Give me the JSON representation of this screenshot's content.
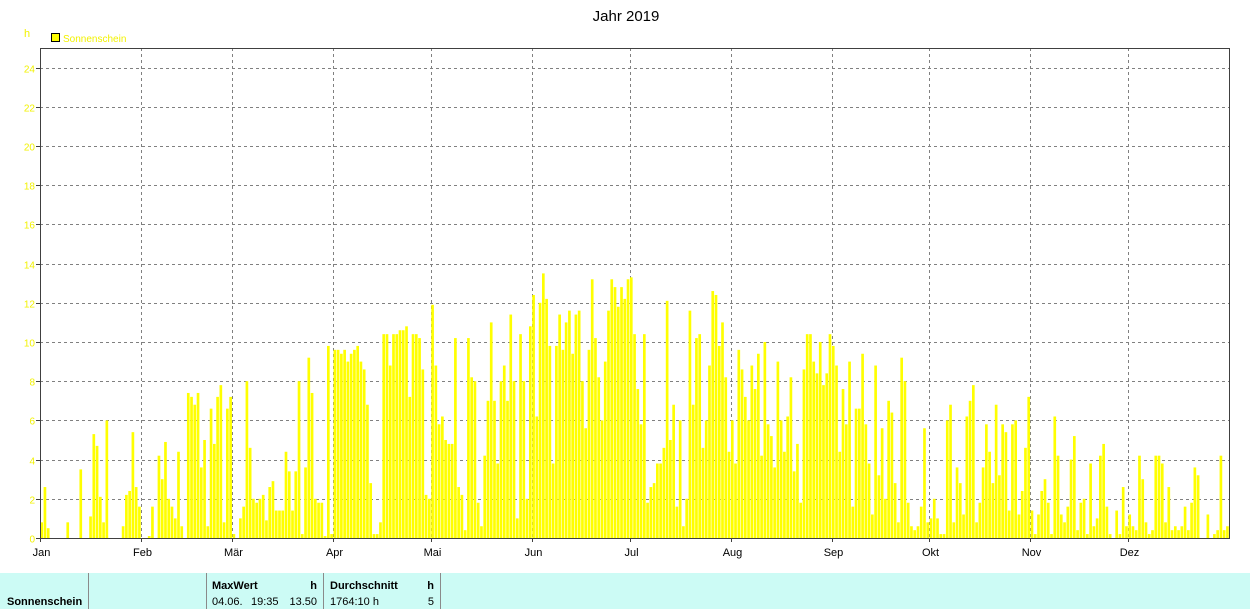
{
  "chart_data": {
    "type": "bar",
    "title": "Jahr 2019",
    "xlabel": "",
    "ylabel": "h",
    "ylim": [
      0,
      25
    ],
    "yticks": [
      0,
      2,
      4,
      6,
      8,
      10,
      12,
      14,
      16,
      18,
      20,
      22,
      24
    ],
    "grid": true,
    "legend": "top-left",
    "series": [
      {
        "name": "Sonnenschein",
        "color": "#ffff00"
      }
    ],
    "colors": {
      "bar": "#ffff00",
      "axis_text": "#f2f200",
      "grid": "#808080",
      "frame": "#404040"
    },
    "months": [
      {
        "label": "Jan",
        "daily_values": [
          0.8,
          2.6,
          0.5,
          0,
          0,
          0,
          0,
          0,
          0.8,
          0,
          0,
          0,
          3.5,
          0,
          0,
          1.1,
          5.3,
          4.7,
          2.1,
          0.8,
          6.0,
          0,
          0,
          0,
          0,
          0.6,
          2.2,
          2.4,
          5.4,
          2.6,
          1.6
        ]
      },
      {
        "label": "Feb",
        "daily_values": [
          0,
          0,
          0.1,
          1.6,
          0,
          4.2,
          3.0,
          4.9,
          2.0,
          1.6,
          1.0,
          4.4,
          0.6,
          0,
          7.4,
          7.2,
          6.8,
          7.4,
          3.6,
          5.0,
          0.6,
          6.6,
          4.8,
          7.2,
          7.8,
          0.8,
          6.6,
          7.2
        ]
      },
      {
        "label": "Mär",
        "daily_values": [
          0.2,
          0,
          1.0,
          1.6,
          8.0,
          4.6,
          2.0,
          1.8,
          2.0,
          2.2,
          0.9,
          2.6,
          2.9,
          1.4,
          1.4,
          1.4,
          4.4,
          3.4,
          1.4,
          3.4,
          8.0,
          0.2,
          3.6,
          9.2,
          7.4,
          2.0,
          1.8,
          1.8,
          0.1,
          9.8,
          0.2
        ]
      },
      {
        "label": "Apr",
        "daily_values": [
          9.6,
          9.6,
          9.4,
          9.6,
          9.0,
          9.4,
          9.6,
          9.8,
          9.0,
          8.6,
          6.8,
          2.8,
          0.2,
          0.2,
          0.8,
          10.4,
          10.4,
          8.8,
          10.4,
          10.4,
          10.6,
          10.6,
          10.8,
          7.2,
          10.4,
          10.4,
          10.2,
          8.6,
          2.2,
          2.0
        ]
      },
      {
        "label": "Mai",
        "daily_values": [
          11.9,
          8.8,
          5.8,
          6.2,
          5.0,
          4.8,
          4.8,
          10.2,
          2.6,
          2.2,
          0.4,
          10.2,
          8.2,
          8.0,
          1.8,
          0.6,
          4.2,
          7.0,
          11.0,
          7.0,
          3.8,
          8.0,
          8.8,
          7.0,
          11.4,
          8.0,
          1.0,
          10.4,
          8.0,
          2.0,
          10.8
        ]
      },
      {
        "label": "Jun",
        "daily_values": [
          12.4,
          6.2,
          12.0,
          13.5,
          12.2,
          9.8,
          3.8,
          9.8,
          11.4,
          9.6,
          11.0,
          11.6,
          9.4,
          11.4,
          11.6,
          8.0,
          5.6,
          9.6,
          13.2,
          10.2,
          8.2,
          6.0,
          9.0,
          11.6,
          13.2,
          12.8,
          11.8,
          12.8,
          12.2,
          13.2
        ]
      },
      {
        "label": "Jul",
        "daily_values": [
          13.3,
          10.4,
          7.6,
          5.8,
          10.4,
          1.8,
          2.6,
          2.8,
          3.8,
          3.8,
          4.6,
          12.1,
          5.0,
          6.8,
          1.6,
          6.0,
          0.6,
          2.0,
          11.6,
          6.8,
          10.2,
          10.4,
          4.6,
          6.0,
          8.8,
          12.6,
          12.4,
          9.8,
          11.0,
          8.2,
          4.4
        ]
      },
      {
        "label": "Aug",
        "daily_values": [
          6.0,
          3.8,
          9.6,
          8.6,
          7.2,
          6.0,
          8.8,
          7.6,
          9.4,
          4.2,
          10.0,
          5.8,
          5.2,
          3.6,
          9.0,
          6.0,
          4.4,
          6.2,
          8.2,
          3.4,
          4.8,
          1.8,
          8.6,
          10.4,
          10.4,
          9.0,
          8.4,
          10.0,
          7.8,
          8.4,
          10.4
        ]
      },
      {
        "label": "Sep",
        "daily_values": [
          9.8,
          8.8,
          4.4,
          7.6,
          5.8,
          9.0,
          1.6,
          6.6,
          6.6,
          9.4,
          5.8,
          3.8,
          1.2,
          8.8,
          3.2,
          5.6,
          2.0,
          7.0,
          6.4,
          2.8,
          0.8,
          9.2,
          8.0,
          1.8,
          0.6,
          0.4,
          0.6,
          1.6,
          5.6,
          0.8
        ]
      },
      {
        "label": "Okt",
        "daily_values": [
          1.0,
          2.0,
          1.0,
          0.2,
          0.2,
          6.0,
          6.8,
          0.8,
          3.6,
          2.8,
          1.2,
          6.2,
          7.0,
          7.8,
          0.8,
          1.8,
          3.6,
          5.8,
          4.4,
          2.8,
          6.8,
          3.2,
          5.8,
          5.4,
          1.4,
          5.8,
          6.0,
          1.2,
          2.4,
          4.6,
          7.2
        ]
      },
      {
        "label": "Nov",
        "daily_values": [
          1.4,
          0.2,
          1.2,
          2.4,
          3.0,
          1.8,
          0.2,
          6.2,
          4.2,
          1.2,
          0.8,
          1.6,
          4.0,
          5.2,
          0.4,
          1.8,
          2.0,
          0.2,
          3.8,
          0.6,
          1.0,
          4.2,
          4.8,
          1.6,
          0.2,
          0.0,
          1.4,
          0.2,
          2.6,
          0.6
        ]
      },
      {
        "label": "Dez",
        "daily_values": [
          1.2,
          0.6,
          0.4,
          4.2,
          3.0,
          0.8,
          0.2,
          0.4,
          4.2,
          4.2,
          3.8,
          0.8,
          2.6,
          0.4,
          0.6,
          0.4,
          0.6,
          1.6,
          0.4,
          1.8,
          3.6,
          3.2,
          0.0,
          0.0,
          1.2,
          0.0,
          0.2,
          0.4,
          4.2,
          0.4,
          0.6
        ]
      }
    ]
  },
  "stats_table": {
    "row_label": "Sonnenschein",
    "max": {
      "header": "MaxWert",
      "unit": "h",
      "date": "04.06.",
      "time": "19:35",
      "value": "13.50"
    },
    "avg": {
      "header": "Durchschnitt",
      "unit": "h",
      "total": "1764:10 h",
      "value": "5"
    }
  }
}
